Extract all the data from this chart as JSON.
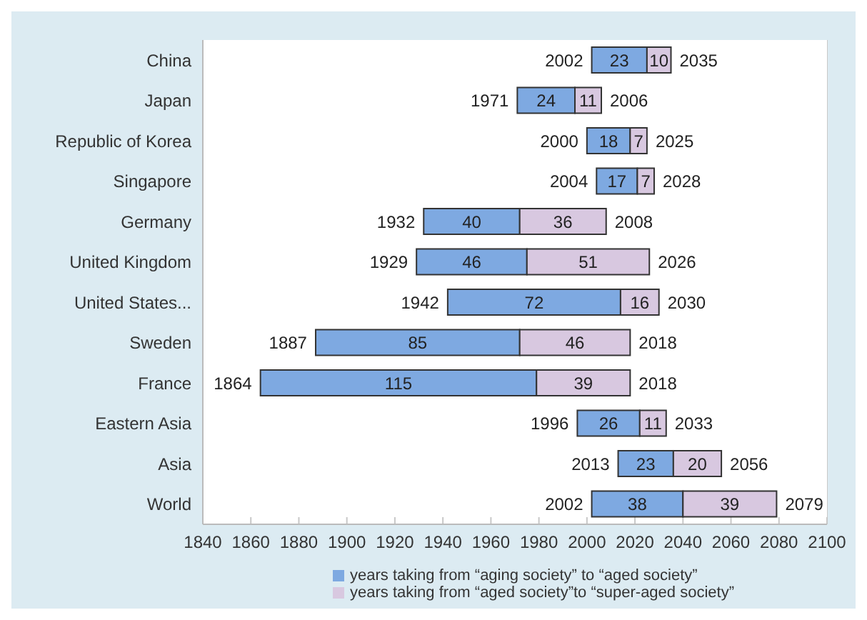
{
  "chart_data": {
    "type": "bar",
    "orientation": "horizontal",
    "categories": [
      "China",
      "Japan",
      "Republic of Korea",
      "Singapore",
      "Germany",
      "United Kingdom",
      "United States...",
      "Sweden",
      "France",
      "Eastern Asia",
      "Asia",
      "World"
    ],
    "series": [
      {
        "name": "years taking from “aging society” to “aged society”",
        "color": "#7ea9e1",
        "base": [
          2002,
          1971,
          2000,
          2004,
          1932,
          1929,
          1942,
          1887,
          1864,
          1996,
          2013,
          2002
        ],
        "values": [
          23,
          24,
          18,
          17,
          40,
          46,
          72,
          85,
          115,
          26,
          23,
          38
        ]
      },
      {
        "name": "years taking from “aged society”to “super-aged society”",
        "color": "#d8c8e0",
        "base": [
          2025,
          1995,
          2018,
          2021,
          1972,
          1975,
          2014,
          1972,
          1979,
          2022,
          2036,
          2040
        ],
        "values": [
          10,
          11,
          7,
          7,
          36,
          51,
          16,
          46,
          39,
          11,
          20,
          39
        ]
      }
    ],
    "xlim": [
      1840,
      2100
    ],
    "xticks": [
      1840,
      1860,
      1880,
      1900,
      1920,
      1940,
      1960,
      1980,
      2000,
      2020,
      2040,
      2060,
      2080,
      2100
    ],
    "grid": "x",
    "legend": "bottom",
    "data_labels": true,
    "annotations": [
      {
        "text": "2002",
        "x": 2002,
        "y": "China"
      },
      {
        "text": "2035",
        "x": 2035,
        "y": "China"
      },
      {
        "text": "1971",
        "x": 1971,
        "y": "Japan"
      },
      {
        "text": "2006",
        "x": 2006,
        "y": "Japan"
      },
      {
        "text": "2000",
        "x": 2000,
        "y": "Republic of Korea"
      },
      {
        "text": "2025",
        "x": 2025,
        "y": "Republic of Korea"
      },
      {
        "text": "2004",
        "x": 2004,
        "y": "Singapore"
      },
      {
        "text": "2028",
        "x": 2028,
        "y": "Singapore"
      },
      {
        "text": "1932",
        "x": 1932,
        "y": "Germany"
      },
      {
        "text": "2008",
        "x": 2008,
        "y": "Germany"
      },
      {
        "text": "1929",
        "x": 1929,
        "y": "United Kingdom"
      },
      {
        "text": "2026",
        "x": 2026,
        "y": "United Kingdom"
      },
      {
        "text": "1942",
        "x": 1942,
        "y": "United States..."
      },
      {
        "text": "2030",
        "x": 2030,
        "y": "United States..."
      },
      {
        "text": "1887",
        "x": 1887,
        "y": "Sweden"
      },
      {
        "text": "2018",
        "x": 2018,
        "y": "Sweden"
      },
      {
        "text": "1864",
        "x": 1864,
        "y": "France"
      },
      {
        "text": "2018",
        "x": 2018,
        "y": "France"
      },
      {
        "text": "1996",
        "x": 1996,
        "y": "Eastern Asia"
      },
      {
        "text": "2033",
        "x": 2033,
        "y": "Eastern Asia"
      },
      {
        "text": "2013",
        "x": 2013,
        "y": "Asia"
      },
      {
        "text": "2056",
        "x": 2056,
        "y": "Asia"
      },
      {
        "text": "2002",
        "x": 2002,
        "y": "World"
      },
      {
        "text": "2079",
        "x": 2079,
        "y": "World"
      }
    ]
  }
}
